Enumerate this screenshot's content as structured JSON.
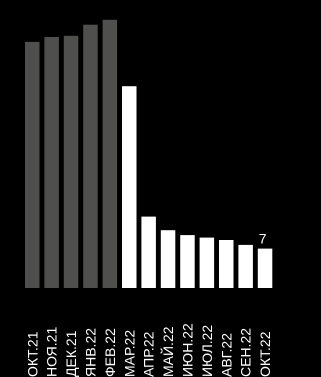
{
  "chart_data": {
    "type": "bar",
    "categories": [
      "ОКТ.21",
      "НОЯ.21",
      "ДЕК.21",
      "ЯНВ.22",
      "ФЕВ.22",
      "МАР.22",
      "АПР.22",
      "МАЙ.22",
      "ИЮН.22",
      "ИЮЛ.22",
      "АВГ.22",
      "СЕН.22",
      "ОКТ.22"
    ],
    "values": [
      100,
      102,
      102.5,
      107,
      109,
      82,
      29,
      23.5,
      21.5,
      20.5,
      19.5,
      17.5,
      16
    ],
    "bar_colors": [
      "#4f4f4d",
      "#4f4f4d",
      "#4f4f4d",
      "#4f4f4d",
      "#4f4f4d",
      "#ffffff",
      "#ffffff",
      "#ffffff",
      "#ffffff",
      "#ffffff",
      "#ffffff",
      "#ffffff",
      "#ffffff"
    ],
    "visible_data_label": "7",
    "ylim": [
      0,
      115
    ],
    "grid": false,
    "legend": "none",
    "title": "",
    "xlabel": "",
    "ylabel": ""
  },
  "colors": {
    "background": "#000000",
    "before_bars": "#4f4f4d",
    "after_bars": "#ffffff",
    "label_text": "#ffffff"
  }
}
